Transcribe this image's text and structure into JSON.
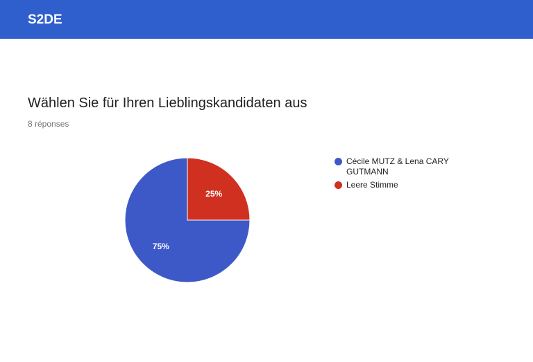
{
  "header": {
    "title": "S2DE",
    "color": "#2f5fcc"
  },
  "question": {
    "title": "Wählen Sie für Ihren Lieblingskandidaten aus",
    "responses": "8 réponses"
  },
  "chart_data": {
    "type": "pie",
    "title": "Wählen Sie für Ihren Lieblingskandidaten aus",
    "subtitle": "8 réponses",
    "legend_position": "right",
    "slices": [
      {
        "label": "Cécile MUTZ & Lena CARY GUTMANN",
        "value": 75,
        "display": "75%",
        "color": "#3d59c8"
      },
      {
        "label": "Leere Stimme",
        "value": 25,
        "display": "25%",
        "color": "#d0301f"
      }
    ]
  }
}
